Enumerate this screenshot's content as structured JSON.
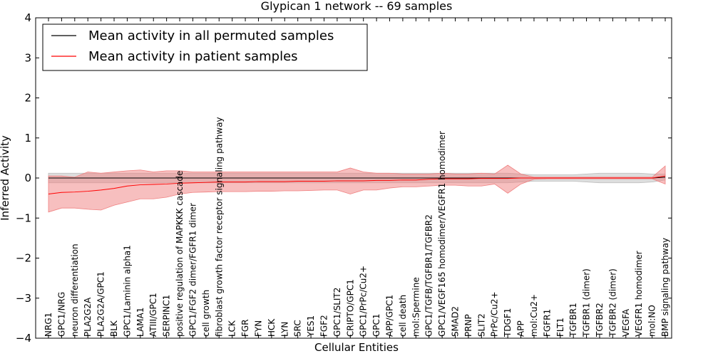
{
  "chart_data": {
    "type": "line",
    "title": "Glypican 1 network -- 69 samples",
    "xlabel": "Cellular Entities",
    "ylabel": "Inferred Activity",
    "ylim": [
      -4,
      4
    ],
    "yticks": [
      -4,
      -3,
      -2,
      -1,
      0,
      1,
      2,
      3,
      4
    ],
    "grid": false,
    "legend_position": "top-left",
    "categories": [
      "NRG1",
      "GPC1/NRG",
      "neuron differentiation",
      "PLA2G2A",
      "PLA2G2A/GPC1",
      "BLK",
      "GPC1/Laminin alpha1",
      "LAMA1",
      "ATIII/GPC1",
      "SERPINC1",
      "positive regulation of MAPKKK cascade",
      "GPC1/FGF2 dimer/FGFR1 dimer",
      "cell growth",
      "fibroblast growth factor receptor signaling pathway",
      "LCK",
      "FGR",
      "FYN",
      "HCK",
      "LYN",
      "SRC",
      "YES1",
      "FGF2",
      "GPC1/SLIT2",
      "CRIPTO/GPC1",
      "GPC1/PrPc/Cu2+",
      "GPC1",
      "APP/GPC1",
      "cell death",
      "mol:Spermine",
      "GPC1/TGFB/TGFBR1/TGFBR2",
      "GPC1/VEGF165 homodimer/VEGFR1 homodimer",
      "SMAD2",
      "PRNP",
      "SLIT2",
      "PrPc/Cu2+",
      "TDGF1",
      "APP",
      "mol:Cu2+",
      "FGFR1",
      "FLT1",
      "TGFBR1",
      "TGFBR1 (dimer)",
      "TGFBR2",
      "TGFBR2 (dimer)",
      "VEGFA",
      "VEGFR1 homodimer",
      "mol:NO",
      "BMP signaling pathway"
    ],
    "series": [
      {
        "name": "Mean activity in all permuted samples",
        "color": "#000000",
        "band_color": "#bbbbbb",
        "values": [
          0.0,
          0.0,
          0.0,
          0.0,
          0.0,
          0.0,
          0.0,
          0.0,
          0.0,
          0.0,
          0.0,
          0.0,
          0.0,
          0.0,
          0.0,
          0.0,
          0.0,
          0.0,
          0.0,
          0.0,
          0.0,
          0.0,
          0.0,
          0.0,
          0.0,
          0.0,
          0.0,
          0.0,
          0.0,
          0.0,
          0.0,
          0.0,
          0.0,
          0.0,
          0.0,
          0.0,
          0.0,
          0.0,
          0.0,
          0.0,
          0.0,
          0.0,
          0.0,
          0.0,
          0.0,
          0.0,
          0.0,
          0.02
        ],
        "lower": [
          -0.12,
          -0.12,
          -0.12,
          -0.12,
          -0.12,
          -0.12,
          -0.12,
          -0.12,
          -0.12,
          -0.12,
          -0.12,
          -0.12,
          -0.12,
          -0.12,
          -0.12,
          -0.12,
          -0.12,
          -0.12,
          -0.12,
          -0.12,
          -0.12,
          -0.12,
          -0.12,
          -0.12,
          -0.12,
          -0.12,
          -0.12,
          -0.12,
          -0.12,
          -0.12,
          -0.12,
          -0.12,
          -0.12,
          -0.12,
          -0.12,
          -0.12,
          -0.1,
          -0.08,
          -0.08,
          -0.08,
          -0.08,
          -0.1,
          -0.12,
          -0.12,
          -0.12,
          -0.12,
          -0.1,
          -0.05
        ],
        "upper": [
          0.12,
          0.12,
          0.12,
          0.12,
          0.12,
          0.12,
          0.12,
          0.12,
          0.12,
          0.12,
          0.12,
          0.12,
          0.12,
          0.12,
          0.12,
          0.12,
          0.12,
          0.12,
          0.12,
          0.12,
          0.12,
          0.12,
          0.12,
          0.12,
          0.12,
          0.12,
          0.12,
          0.12,
          0.12,
          0.12,
          0.12,
          0.12,
          0.12,
          0.12,
          0.12,
          0.12,
          0.1,
          0.08,
          0.08,
          0.08,
          0.08,
          0.1,
          0.12,
          0.12,
          0.12,
          0.12,
          0.1,
          0.1
        ]
      },
      {
        "name": "Mean activity in patient samples",
        "color": "#ff0000",
        "band_color": "#f08080",
        "values": [
          -0.4,
          -0.36,
          -0.35,
          -0.33,
          -0.3,
          -0.26,
          -0.2,
          -0.17,
          -0.16,
          -0.15,
          -0.13,
          -0.12,
          -0.11,
          -0.1,
          -0.1,
          -0.1,
          -0.09,
          -0.09,
          -0.09,
          -0.08,
          -0.08,
          -0.08,
          -0.07,
          -0.07,
          -0.07,
          -0.06,
          -0.06,
          -0.05,
          -0.05,
          -0.03,
          -0.02,
          -0.02,
          -0.02,
          -0.01,
          -0.01,
          -0.01,
          0.0,
          0.0,
          0.0,
          0.0,
          0.0,
          0.0,
          0.0,
          0.0,
          0.0,
          0.0,
          0.0,
          0.05
        ],
        "lower": [
          -0.85,
          -0.75,
          -0.75,
          -0.78,
          -0.8,
          -0.68,
          -0.6,
          -0.52,
          -0.52,
          -0.48,
          -0.4,
          -0.36,
          -0.35,
          -0.34,
          -0.34,
          -0.34,
          -0.33,
          -0.33,
          -0.32,
          -0.32,
          -0.31,
          -0.3,
          -0.3,
          -0.4,
          -0.3,
          -0.3,
          -0.25,
          -0.22,
          -0.22,
          -0.2,
          -0.18,
          -0.18,
          -0.2,
          -0.2,
          -0.15,
          -0.38,
          -0.15,
          -0.03,
          -0.02,
          -0.02,
          -0.02,
          -0.02,
          -0.02,
          -0.02,
          -0.02,
          -0.02,
          -0.02,
          -0.15
        ],
        "upper": [
          0.05,
          0.05,
          0.02,
          0.15,
          0.12,
          0.15,
          0.18,
          0.2,
          0.15,
          0.18,
          0.18,
          0.15,
          0.15,
          0.15,
          0.15,
          0.15,
          0.15,
          0.15,
          0.15,
          0.15,
          0.15,
          0.15,
          0.15,
          0.25,
          0.15,
          0.12,
          0.12,
          0.1,
          0.1,
          0.1,
          0.12,
          0.1,
          0.1,
          0.12,
          0.1,
          0.32,
          0.1,
          0.02,
          0.02,
          0.02,
          0.02,
          0.02,
          0.02,
          0.02,
          0.02,
          0.02,
          0.02,
          0.3
        ]
      }
    ]
  }
}
